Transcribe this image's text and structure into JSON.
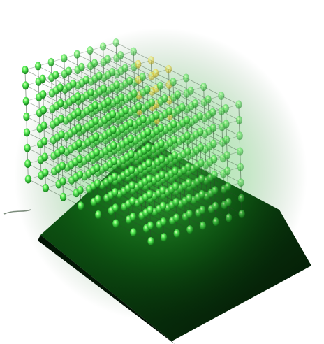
{
  "photo": {
    "subject": "led-cube",
    "led_grid": [
      8,
      8,
      8
    ],
    "colors": {
      "background": "#ffffff",
      "led_green": "#3fe24a",
      "led_green_bright": "#b8ff9a",
      "led_green_dim": "#17861f",
      "led_yellow": "#f2e03a",
      "wire": "#2e4a2e",
      "base": "#0e5a14",
      "base_dark": "#041a06"
    }
  }
}
